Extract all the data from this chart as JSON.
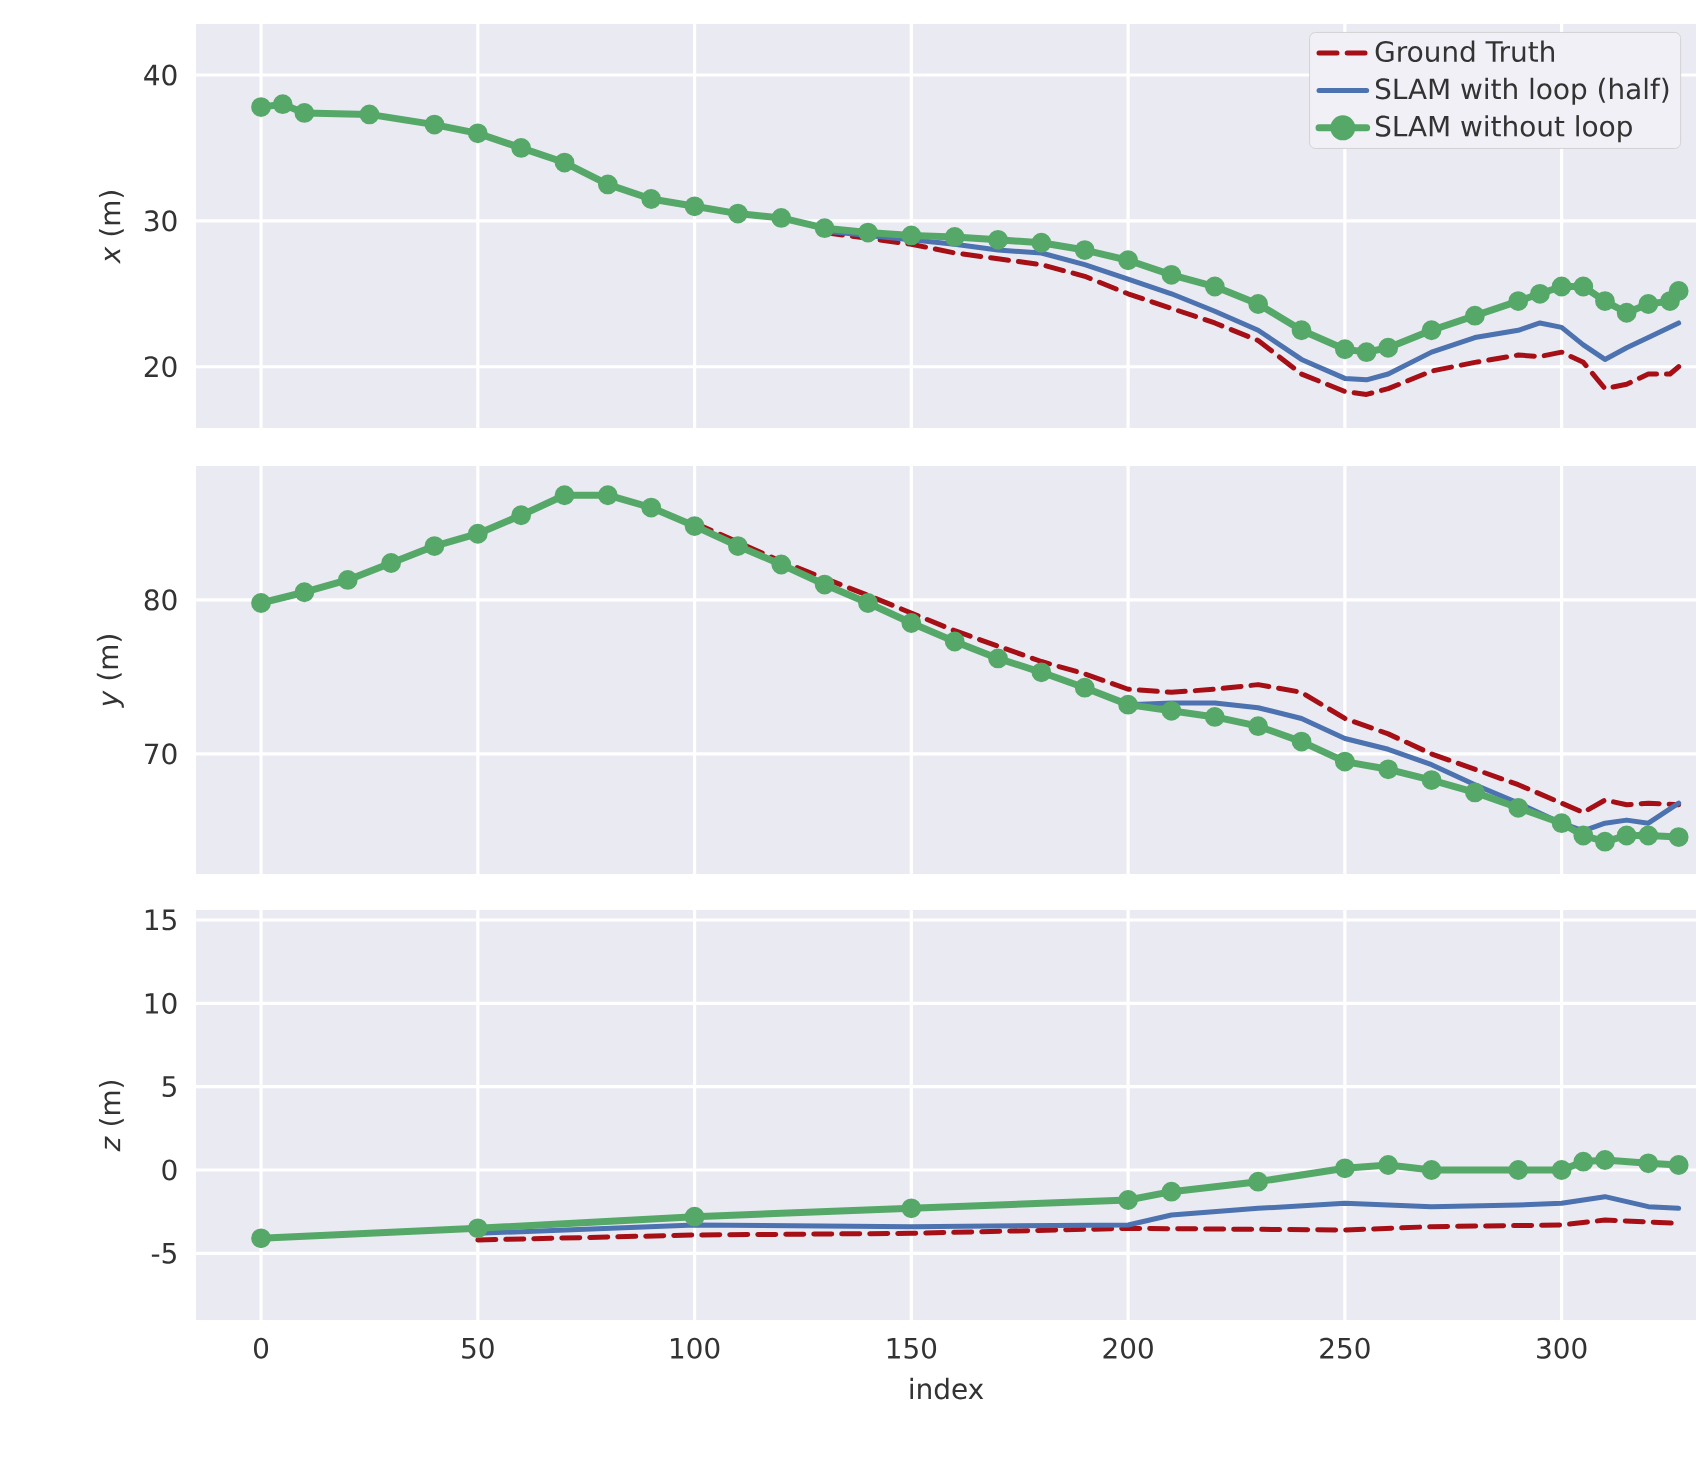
{
  "chart_data": [
    {
      "type": "line",
      "ylabel": "*x* (m)",
      "xlim": [
        -15,
        331
      ],
      "xticks": [
        0,
        50,
        100,
        150,
        200,
        250,
        300
      ],
      "ylim": [
        15.8,
        43.5
      ],
      "yticks": [
        20,
        30,
        40
      ],
      "grid": true,
      "legend": "top right",
      "tick_labels": "y",
      "series": [
        {
          "name": "Ground Truth",
          "color": "#a50f15",
          "line_style": "dashed",
          "x": [
            130,
            140,
            150,
            160,
            170,
            180,
            190,
            200,
            210,
            220,
            230,
            240,
            250,
            255,
            260,
            270,
            280,
            290,
            295,
            300,
            305,
            310,
            315,
            320,
            325,
            327
          ],
          "values": [
            29.2,
            28.8,
            28.4,
            27.8,
            27.4,
            27,
            26.2,
            25,
            24,
            23,
            21.8,
            19.5,
            18.3,
            18.1,
            18.5,
            19.7,
            20.3,
            20.8,
            20.7,
            21,
            20.3,
            18.5,
            18.8,
            19.5,
            19.5,
            20
          ]
        },
        {
          "name": "SLAM with loop (half)",
          "color": "#4c72b0",
          "x": [
            130,
            140,
            150,
            160,
            170,
            180,
            190,
            200,
            210,
            220,
            230,
            240,
            250,
            255,
            260,
            270,
            280,
            290,
            295,
            300,
            305,
            310,
            315,
            320,
            327
          ],
          "values": [
            29.3,
            29,
            28.7,
            28.4,
            28,
            27.8,
            27,
            26,
            25,
            23.8,
            22.5,
            20.5,
            19.2,
            19.1,
            19.5,
            21,
            22,
            22.5,
            23,
            22.7,
            21.5,
            20.5,
            21.3,
            22,
            23
          ]
        },
        {
          "name": "SLAM without loop",
          "color": "#55a868",
          "marker": "circle",
          "x": [
            0,
            5,
            10,
            25,
            40,
            50,
            60,
            70,
            80,
            90,
            100,
            110,
            120,
            130,
            140,
            150,
            160,
            170,
            180,
            190,
            200,
            210,
            220,
            230,
            240,
            250,
            255,
            260,
            270,
            280,
            290,
            295,
            300,
            305,
            310,
            315,
            320,
            325,
            327
          ],
          "values": [
            37.8,
            38,
            37.4,
            37.3,
            36.6,
            36,
            35,
            34,
            32.5,
            31.5,
            31,
            30.5,
            30.2,
            29.5,
            29.2,
            29,
            28.9,
            28.7,
            28.5,
            28,
            27.3,
            26.3,
            25.5,
            24.3,
            22.5,
            21.2,
            21,
            21.3,
            22.5,
            23.5,
            24.5,
            25,
            25.5,
            25.5,
            24.5,
            23.7,
            24.3,
            24.5,
            25.2
          ]
        }
      ]
    },
    {
      "type": "line",
      "ylabel": "*y* (m)",
      "xlim": [
        -15,
        331
      ],
      "xticks": [
        0,
        50,
        100,
        150,
        200,
        250,
        300
      ],
      "ylim": [
        62.2,
        88.7
      ],
      "yticks": [
        70,
        80
      ],
      "grid": true,
      "tick_labels": "y",
      "series": [
        {
          "color": "#a50f15",
          "line_style": "dashed",
          "x": [
            100,
            120,
            140,
            160,
            180,
            190,
            200,
            210,
            220,
            230,
            240,
            250,
            260,
            270,
            280,
            290,
            300,
            305,
            310,
            315,
            320,
            327
          ],
          "values": [
            85,
            82.5,
            80.3,
            78,
            76,
            75.2,
            74.2,
            74,
            74.2,
            74.5,
            74,
            72.3,
            71.3,
            70,
            69,
            68,
            66.8,
            66.2,
            67,
            66.7,
            66.8,
            66.7
          ]
        },
        {
          "color": "#4c72b0",
          "x": [
            200,
            210,
            220,
            230,
            240,
            250,
            260,
            270,
            280,
            290,
            300,
            305,
            310,
            315,
            320,
            327
          ],
          "values": [
            73.2,
            73.3,
            73.3,
            73,
            72.3,
            71,
            70.3,
            69.3,
            68,
            66.8,
            65.5,
            65,
            65.5,
            65.7,
            65.5,
            66.8
          ]
        },
        {
          "color": "#55a868",
          "marker": "circle",
          "x": [
            0,
            10,
            20,
            30,
            40,
            50,
            60,
            70,
            80,
            90,
            100,
            110,
            120,
            130,
            140,
            150,
            160,
            170,
            180,
            190,
            200,
            210,
            220,
            230,
            240,
            250,
            260,
            270,
            280,
            290,
            300,
            305,
            310,
            315,
            320,
            327
          ],
          "values": [
            79.8,
            80.5,
            81.3,
            82.4,
            83.5,
            84.3,
            85.5,
            86.8,
            86.8,
            86,
            84.8,
            83.5,
            82.3,
            81,
            79.8,
            78.5,
            77.3,
            76.2,
            75.3,
            74.3,
            73.2,
            72.8,
            72.4,
            71.8,
            70.8,
            69.5,
            69,
            68.3,
            67.5,
            66.5,
            65.5,
            64.7,
            64.3,
            64.7,
            64.7,
            64.6
          ]
        }
      ]
    },
    {
      "type": "line",
      "xlabel": "index",
      "ylabel": "*z* (m)",
      "xlim": [
        -15,
        331
      ],
      "xticks": [
        0,
        50,
        100,
        150,
        200,
        250,
        300
      ],
      "ylim": [
        -9,
        15.6
      ],
      "yticks": [
        -5,
        0,
        5,
        10,
        15
      ],
      "grid": true,
      "series": [
        {
          "color": "#a50f15",
          "line_style": "dashed",
          "x": [
            50,
            100,
            150,
            200,
            250,
            270,
            300,
            310,
            327
          ],
          "values": [
            -4.2,
            -3.9,
            -3.8,
            -3.5,
            -3.6,
            -3.4,
            -3.3,
            -3,
            -3.2
          ]
        },
        {
          "color": "#4c72b0",
          "x": [
            50,
            100,
            150,
            200,
            210,
            230,
            250,
            270,
            290,
            300,
            310,
            320,
            327
          ],
          "values": [
            -3.8,
            -3.3,
            -3.4,
            -3.3,
            -2.7,
            -2.3,
            -2,
            -2.2,
            -2.1,
            -2,
            -1.6,
            -2.2,
            -2.3
          ]
        },
        {
          "color": "#55a868",
          "marker": "circle",
          "x": [
            0,
            50,
            100,
            150,
            200,
            210,
            230,
            250,
            260,
            270,
            290,
            300,
            305,
            310,
            320,
            327
          ],
          "values": [
            -4.1,
            -3.5,
            -2.8,
            -2.3,
            -1.8,
            -1.3,
            -0.7,
            0.1,
            0.3,
            0,
            0,
            0,
            0.5,
            0.6,
            0.4,
            0.3
          ]
        }
      ]
    }
  ]
}
